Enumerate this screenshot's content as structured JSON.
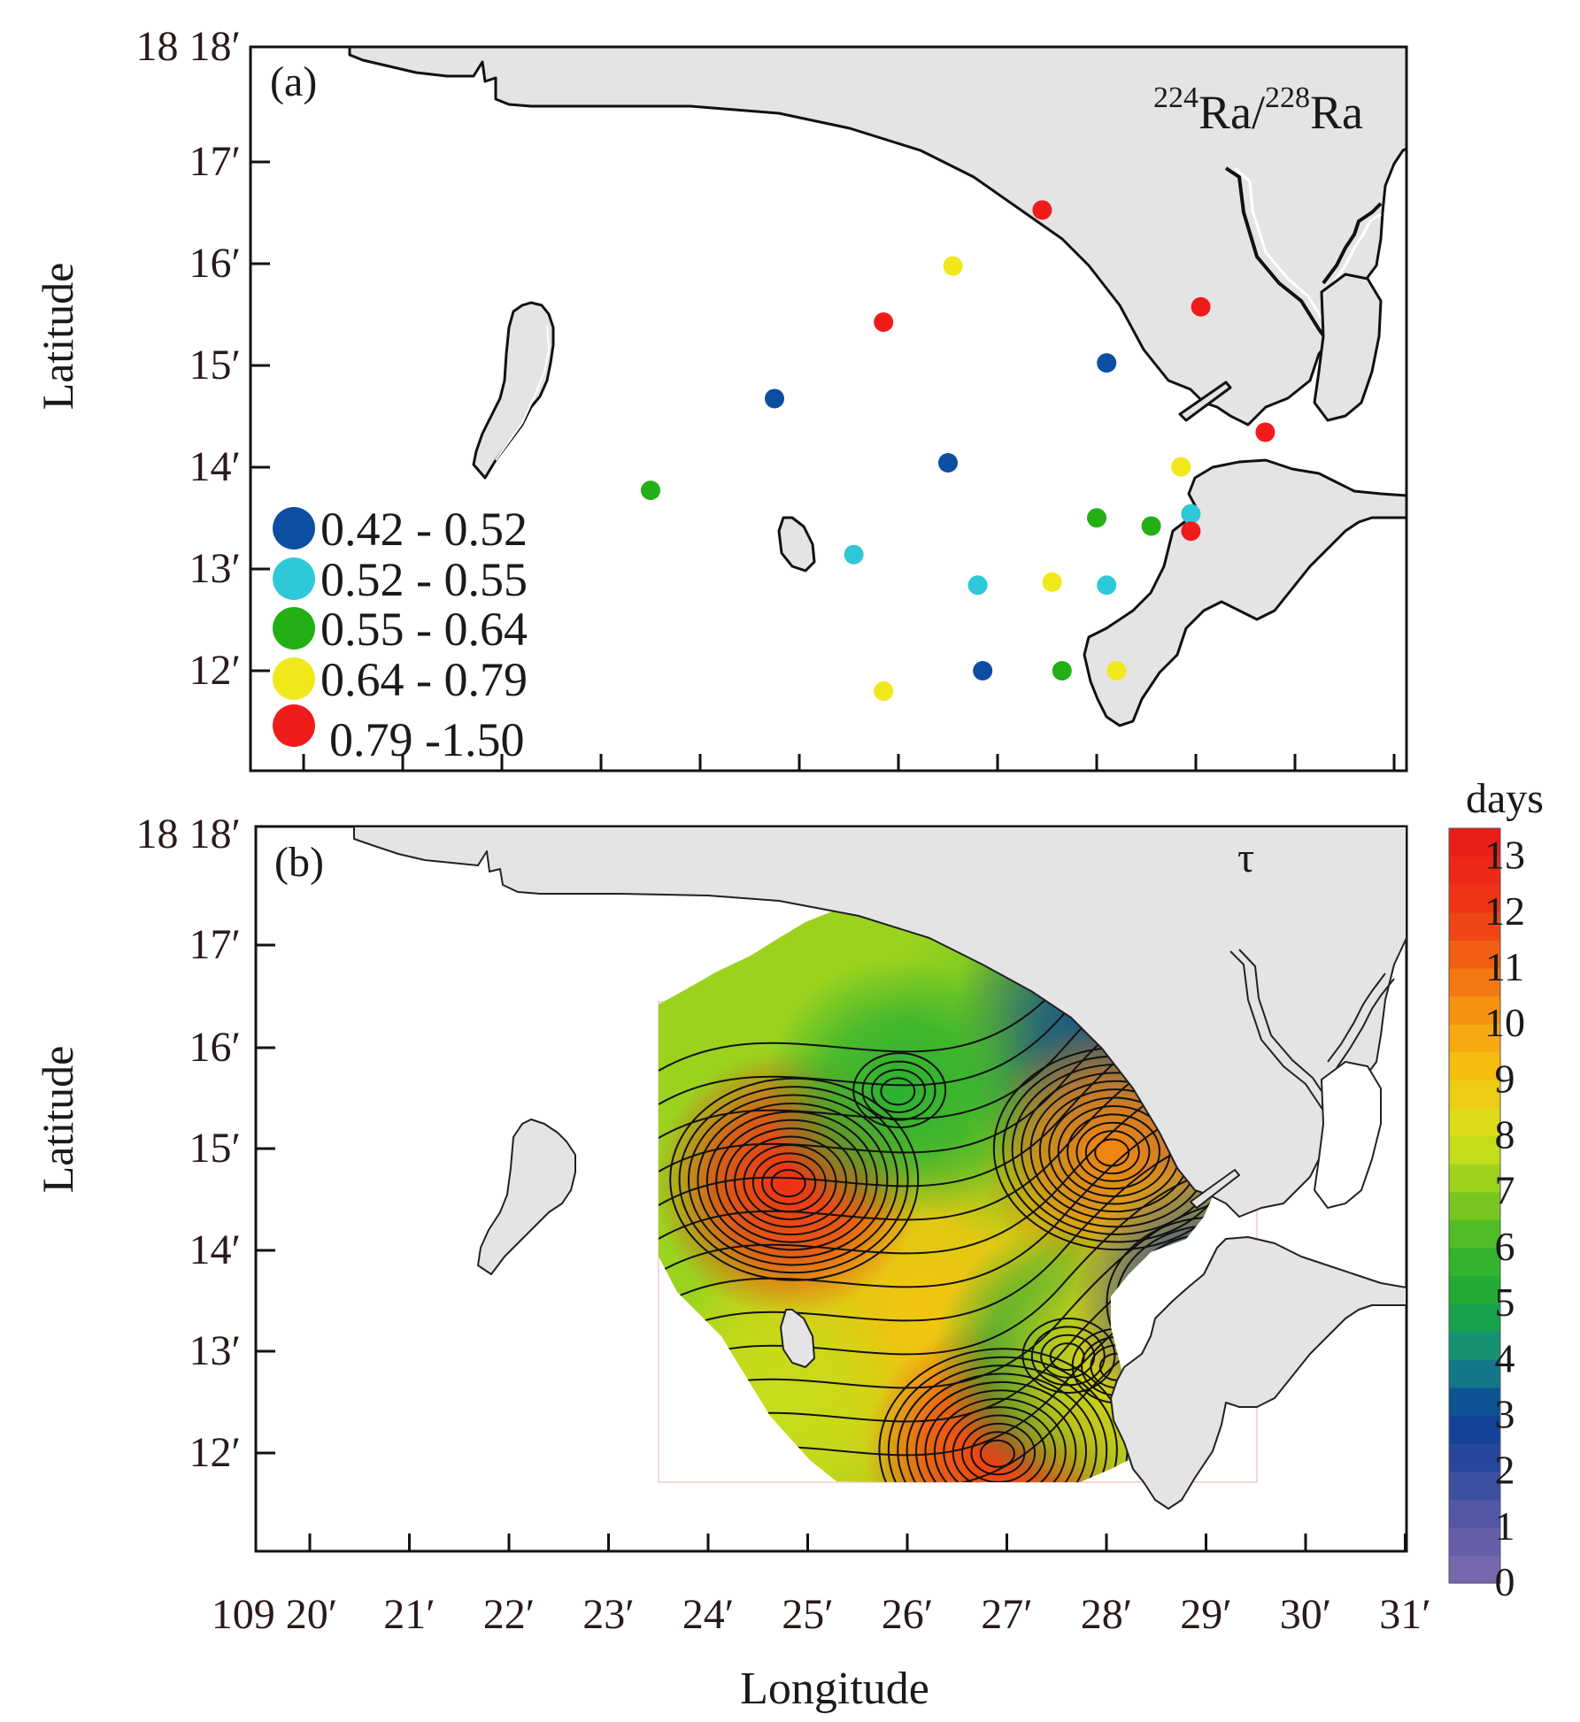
{
  "figure": {
    "panel_a": {
      "label": "(a)",
      "title_sup1": "224",
      "title_mid": "Ra/",
      "title_sup2": "228",
      "title_end": "Ra",
      "ylabel": "Latitude",
      "y_ticks": [
        "18 18′",
        "17′",
        "16′",
        "15′",
        "14′",
        "13′",
        "12′"
      ],
      "legend": [
        {
          "label": "0.42 - 0.52",
          "color": "#0b4ea2"
        },
        {
          "label": "0.52 - 0.55",
          "color": "#2ec8d8"
        },
        {
          "label": "0.55 - 0.64",
          "color": "#22b014"
        },
        {
          "label": "0.64 - 0.79",
          "color": "#f0e81a"
        },
        {
          "label": "0.79 -1.50",
          "color": "#f01c1c"
        }
      ],
      "stations": [
        {
          "lon": 27.45,
          "lat": 16.4,
          "cls": 4
        },
        {
          "lon": 26.55,
          "lat": 15.85,
          "cls": 3
        },
        {
          "lon": 25.85,
          "lat": 15.3,
          "cls": 4
        },
        {
          "lon": 29.05,
          "lat": 15.45,
          "cls": 4
        },
        {
          "lon": 28.1,
          "lat": 14.9,
          "cls": 0
        },
        {
          "lon": 24.75,
          "lat": 14.55,
          "cls": 0
        },
        {
          "lon": 29.7,
          "lat": 14.22,
          "cls": 4
        },
        {
          "lon": 26.5,
          "lat": 13.92,
          "cls": 0
        },
        {
          "lon": 28.85,
          "lat": 13.88,
          "cls": 3
        },
        {
          "lon": 23.5,
          "lat": 13.65,
          "cls": 2
        },
        {
          "lon": 28.0,
          "lat": 13.38,
          "cls": 2
        },
        {
          "lon": 28.55,
          "lat": 13.3,
          "cls": 2
        },
        {
          "lon": 28.95,
          "lat": 13.42,
          "cls": 1
        },
        {
          "lon": 28.95,
          "lat": 13.25,
          "cls": 4
        },
        {
          "lon": 25.55,
          "lat": 13.02,
          "cls": 1
        },
        {
          "lon": 26.8,
          "lat": 12.72,
          "cls": 1
        },
        {
          "lon": 27.55,
          "lat": 12.75,
          "cls": 3
        },
        {
          "lon": 28.1,
          "lat": 12.72,
          "cls": 1
        },
        {
          "lon": 26.85,
          "lat": 11.88,
          "cls": 0
        },
        {
          "lon": 27.65,
          "lat": 11.88,
          "cls": 2
        },
        {
          "lon": 28.2,
          "lat": 11.88,
          "cls": 3
        },
        {
          "lon": 25.85,
          "lat": 11.68,
          "cls": 3
        }
      ]
    },
    "panel_b": {
      "label": "(b)",
      "title": "τ",
      "ylabel": "Latitude",
      "xlabel": "Longitude",
      "y_ticks": [
        "18 18′",
        "17′",
        "16′",
        "15′",
        "14′",
        "13′",
        "12′"
      ],
      "x_ticks": [
        "109 20′",
        "21′",
        "22′",
        "23′",
        "24′",
        "25′",
        "26′",
        "27′",
        "28′",
        "29′",
        "30′",
        "31′"
      ],
      "colorbar_title": "days",
      "colorbar_ticks": [
        "13",
        "12",
        "11",
        "10",
        "9",
        "8",
        "7",
        "6",
        "5",
        "4",
        "3",
        "2",
        "1",
        "0"
      ],
      "colorbar_range": [
        0,
        13.5
      ],
      "field_centers": [
        {
          "lon": 24.8,
          "lat": 14.5,
          "value": 12.5
        },
        {
          "lon": 26.9,
          "lat": 11.85,
          "value": 12.0
        },
        {
          "lon": 28.05,
          "lat": 14.8,
          "value": 10.5
        },
        {
          "lon": 25.9,
          "lat": 15.4,
          "value": 5.5
        },
        {
          "lon": 27.6,
          "lat": 12.8,
          "value": 5.0
        },
        {
          "lon": 28.1,
          "lat": 12.7,
          "value": 8.5
        },
        {
          "lon": 28.9,
          "lat": 13.45,
          "value": 9.0
        },
        {
          "lon": 29.0,
          "lat": 13.3,
          "value": 2.0
        }
      ]
    }
  }
}
